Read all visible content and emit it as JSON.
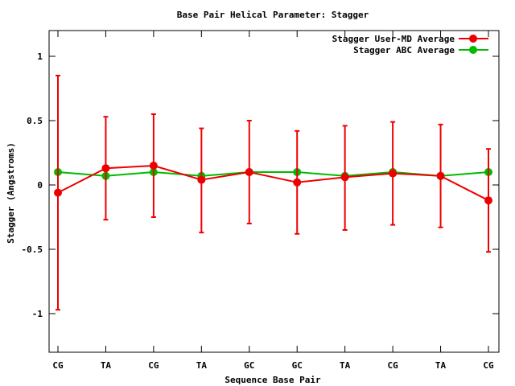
{
  "chart_data": {
    "type": "line",
    "title": "Base Pair Helical Parameter: Stagger",
    "xlabel": "Sequence Base Pair",
    "ylabel": "Stagger (Angstroms)",
    "ylim": [
      -1.3,
      1.2
    ],
    "yticks": [
      1,
      0.5,
      0,
      -0.5,
      -1
    ],
    "ytick_labels": [
      "1",
      "0.5",
      "0",
      "-0.5",
      "-1"
    ],
    "categories": [
      "CG",
      "TA",
      "CG",
      "TA",
      "GC",
      "GC",
      "TA",
      "CG",
      "TA",
      "CG"
    ],
    "legend_position": "top-right",
    "grid": false,
    "series": [
      {
        "name": "Stagger User-MD Average",
        "color": "#ee0000",
        "values": [
          -0.06,
          0.13,
          0.15,
          0.04,
          0.1,
          0.02,
          0.06,
          0.09,
          0.07,
          -0.12
        ],
        "err_low": [
          -0.97,
          -0.27,
          -0.25,
          -0.37,
          -0.3,
          -0.38,
          -0.35,
          -0.31,
          -0.33,
          -0.52
        ],
        "err_high": [
          0.85,
          0.53,
          0.55,
          0.44,
          0.5,
          0.42,
          0.46,
          0.49,
          0.47,
          0.28
        ]
      },
      {
        "name": "Stagger ABC Average",
        "color": "#00bb00",
        "values": [
          0.1,
          0.07,
          0.1,
          0.07,
          0.1,
          0.1,
          0.07,
          0.1,
          0.07,
          0.1
        ]
      }
    ]
  }
}
